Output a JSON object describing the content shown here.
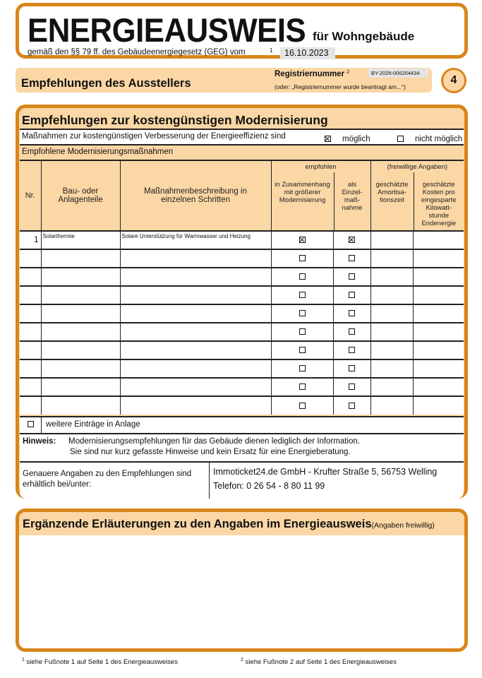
{
  "header": {
    "title": "ENERGIEAUSWEIS",
    "subtitle": "für Wohngebäude",
    "law_line": "gemäß den §§ 79 ff. des Gebäudeenergiegesetz (GEG) vom",
    "footnote_ref": "1",
    "date": "16.10.2023"
  },
  "section": {
    "title": "Empfehlungen des Ausstellers",
    "reg_label": "Registriernummer",
    "reg_sup": "2",
    "reg_value": "BY-2026-006204434",
    "reg_alt": "(oder: „Registriernummer wurde beantragt am...“)",
    "page_number": "4"
  },
  "recommendations": {
    "title": "Empfehlungen zur kostengünstigen Modernisierung",
    "measures_text": "Maßnahmen zur kostengünstigen Verbesserung der Energieeffizienz sind",
    "possible_label": "möglich",
    "possible_checked": true,
    "not_possible_label": "nicht möglich",
    "not_possible_checked": false,
    "recommended_label": "Empfohlene Modernisierungsmaßnahmen",
    "columns": {
      "nr": "Nr.",
      "component": "Bau- oder Anlagenteile",
      "description": "Maßnahmenbeschreibung in einzelnen Schritten",
      "recommended_group": "empfohlen",
      "in_context": "in Zusammenhang mit größerer Modernisierung",
      "single": "als Einzel-maß-nahme",
      "voluntary_group": "(freiwillige Angaben)",
      "payback": "geschätzte Amortisa-tionszeit",
      "cost": "geschätzte Kosten pro eingesparte Kilowatt-stunde Endenergie"
    },
    "rows": [
      {
        "nr": "1",
        "component": "Solarthermie",
        "description": "Solare Unterstützung für Warmwasser und Heizung",
        "in_context": true,
        "single": true,
        "payback": "",
        "cost": ""
      },
      {
        "nr": "",
        "component": "",
        "description": "",
        "in_context": false,
        "single": false,
        "payback": "",
        "cost": ""
      },
      {
        "nr": "",
        "component": "",
        "description": "",
        "in_context": false,
        "single": false,
        "payback": "",
        "cost": ""
      },
      {
        "nr": "",
        "component": "",
        "description": "",
        "in_context": false,
        "single": false,
        "payback": "",
        "cost": ""
      },
      {
        "nr": "",
        "component": "",
        "description": "",
        "in_context": false,
        "single": false,
        "payback": "",
        "cost": ""
      },
      {
        "nr": "",
        "component": "",
        "description": "",
        "in_context": false,
        "single": false,
        "payback": "",
        "cost": ""
      },
      {
        "nr": "",
        "component": "",
        "description": "",
        "in_context": false,
        "single": false,
        "payback": "",
        "cost": ""
      },
      {
        "nr": "",
        "component": "",
        "description": "",
        "in_context": false,
        "single": false,
        "payback": "",
        "cost": ""
      },
      {
        "nr": "",
        "component": "",
        "description": "",
        "in_context": false,
        "single": false,
        "payback": "",
        "cost": ""
      },
      {
        "nr": "",
        "component": "",
        "description": "",
        "in_context": false,
        "single": false,
        "payback": "",
        "cost": ""
      }
    ],
    "more_entries_label": "weitere Einträge in Anlage",
    "more_entries_checked": false,
    "note_label": "Hinweis:",
    "note_line1": "Modernisierungsempfehlungen für das Gebäude dienen lediglich der Information.",
    "note_line2": "Sie sind nur kurz gefasste Hinweise und kein Ersatz für eine Energieberatung.",
    "details_label": "Genauere Angaben zu den Empfehlungen sind erhältlich bei/unter:",
    "details_line1": "Immoticket24.de GmbH - Krufter Straße 5, 56753 Welling",
    "details_line2": "Telefon: 0 26 54 - 8 80 11 99"
  },
  "additional": {
    "title": "Ergänzende Erläuterungen zu den Angaben im Energieausweis",
    "title_note": "(Angaben freiwillig)",
    "text": ""
  },
  "footnotes": [
    {
      "num": "1",
      "text": "siehe Fußnote 1 auf Seite 1 des Energieausweises"
    },
    {
      "num": "2",
      "text": "siehe Fußnote 2 auf Seite 1 des Energieausweises"
    }
  ],
  "colors": {
    "border": "#d8861a",
    "fill": "#fbd7a5"
  }
}
